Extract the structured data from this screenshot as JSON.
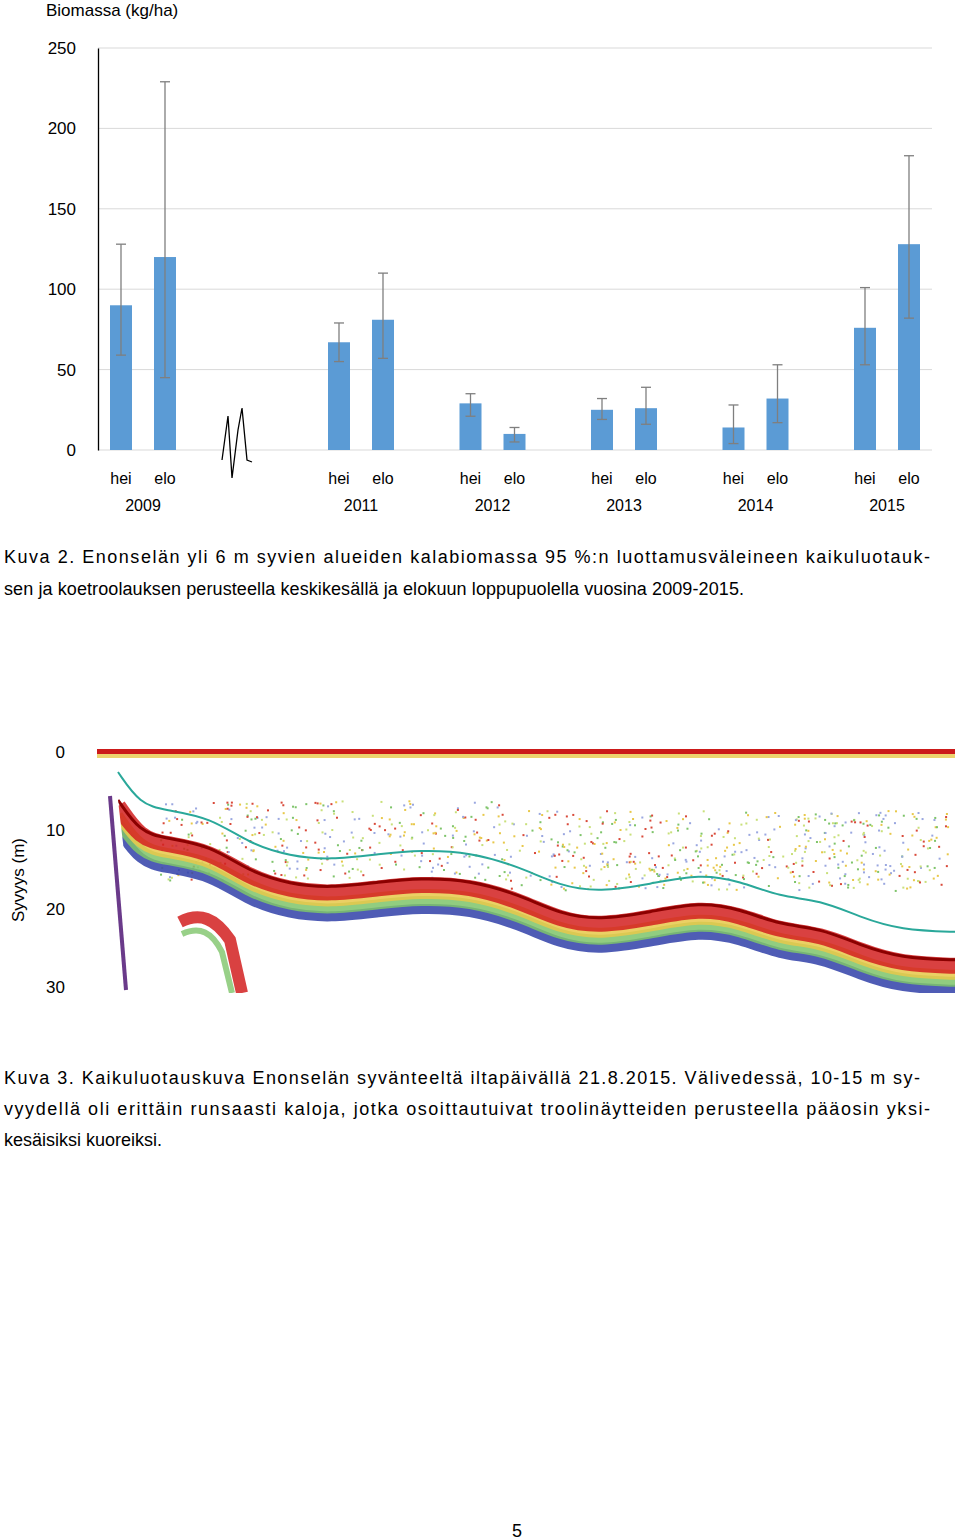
{
  "chart_data": {
    "type": "bar",
    "y_label": "Biomassa (kg/ha)",
    "categories": [
      "hei",
      "elo",
      "hei",
      "elo",
      "hei",
      "elo",
      "hei",
      "elo",
      "hei",
      "elo",
      "hei",
      "elo"
    ],
    "groups": [
      "2009",
      "2011",
      "2012",
      "2013",
      "2014",
      "2015"
    ],
    "values": [
      90,
      120,
      67,
      81,
      29,
      10,
      25,
      26,
      14,
      32,
      76,
      128
    ],
    "ci_low": [
      59,
      45,
      55,
      57,
      21,
      5,
      19,
      16,
      4,
      17,
      53,
      82
    ],
    "ci_high": [
      128,
      229,
      79,
      110,
      35,
      14,
      32,
      39,
      28,
      53,
      101,
      183
    ],
    "color": "#5b9bd5",
    "ylim": [
      0,
      250
    ],
    "yticks": [
      0,
      50,
      100,
      150,
      200,
      250
    ],
    "grid": true
  },
  "figure2_caption": [
    "Kuva 2. Enonselän yli 6 m syvien alueiden kalabiomassa 95 %:n luottamusväleineen kaikuluotauk-",
    "sen ja koetroolauksen perusteella keskikesällä ja elokuun loppupuolella vuosina 2009-2015."
  ],
  "echogram": {
    "axis_label": "Syvyys (m)",
    "ylim": [
      0,
      30
    ],
    "yticks": [
      0,
      10,
      20,
      30
    ]
  },
  "figure3_caption": [
    "Kuva 3. Kaikuluotauskuva Enonselän syvänteeltä iltapäivällä 21.8.2015. Välivedessä, 10-15 m sy-",
    "vyydellä oli erittäin runsaasti kaloja, jotka osoittautuivat troolinäytteiden perusteella pääosin yksi-",
    "kesäisiksi kuoreiksi."
  ],
  "page_number": "5"
}
